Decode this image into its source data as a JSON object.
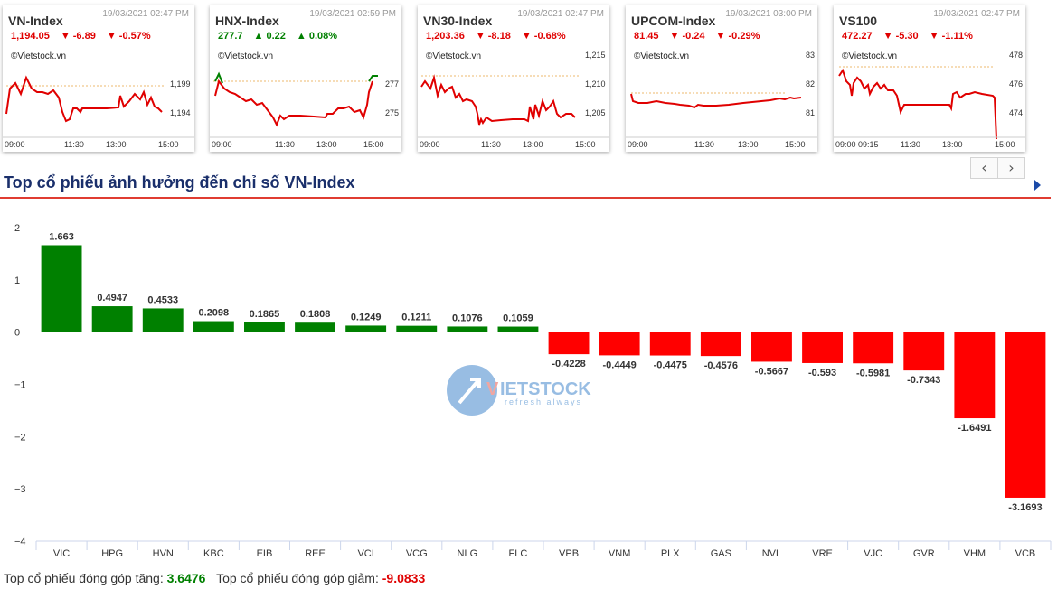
{
  "index_cards": [
    {
      "name": "VN-Index",
      "datetime": "19/03/2021 02:47 PM",
      "value": "1,194.05",
      "change": "▼  -6.89",
      "percent": "▼  -0.57%",
      "direction": "down",
      "brand": "©Vietstock.vn",
      "y_ticks": [
        "1,199",
        "1,194"
      ],
      "x_ticks": [
        "09:00",
        "11:30",
        "13:00",
        "15:00"
      ]
    },
    {
      "name": "HNX-Index",
      "datetime": "19/03/2021 02:59 PM",
      "value": "277.7",
      "change": "▲  0.22",
      "percent": "▲  0.08%",
      "direction": "up",
      "brand": "©Vietstock.vn",
      "y_ticks": [
        "277",
        "275"
      ],
      "x_ticks": [
        "09:00",
        "11:30",
        "13:00",
        "15:00"
      ]
    },
    {
      "name": "VN30-Index",
      "datetime": "19/03/2021 02:47 PM",
      "value": "1,203.36",
      "change": "▼  -8.18",
      "percent": "▼  -0.68%",
      "direction": "down",
      "brand": "©Vietstock.vn",
      "y_ticks": [
        "1,215",
        "1,210",
        "1,205"
      ],
      "x_ticks": [
        "09:00",
        "11:30",
        "13:00",
        "15:00"
      ]
    },
    {
      "name": "UPCOM-Index",
      "datetime": "19/03/2021 03:00 PM",
      "value": "81.45",
      "change": "▼  -0.24",
      "percent": "▼  -0.29%",
      "direction": "down",
      "brand": "©Vietstock.vn",
      "y_ticks": [
        "83",
        "82",
        "81"
      ],
      "x_ticks": [
        "09:00",
        "11:30",
        "13:00",
        "15:00"
      ]
    },
    {
      "name": "VS100",
      "datetime": "19/03/2021 02:47 PM",
      "value": "472.27",
      "change": "▼  -5.30",
      "percent": "▼  -1.11%",
      "direction": "down",
      "brand": "©Vietstock.vn",
      "y_ticks": [
        "478",
        "476",
        "474"
      ],
      "x_ticks": [
        "09:00 09:15",
        "11:30",
        "13:00",
        "15:00"
      ]
    }
  ],
  "pager": {
    "prev": "‹",
    "next": "›"
  },
  "section": {
    "title": "Top cổ phiếu ảnh hưởng đến chỉ số VN-Index"
  },
  "watermark": {
    "brand_v": "V",
    "brand_rest": "IETSTOCK",
    "tagline": "refresh always"
  },
  "chart_data": {
    "type": "bar",
    "title": "Top cổ phiếu ảnh hưởng đến chỉ số VN-Index",
    "categories": [
      "VIC",
      "HPG",
      "HVN",
      "KBC",
      "EIB",
      "REE",
      "VCI",
      "VCG",
      "NLG",
      "FLC",
      "VPB",
      "VNM",
      "PLX",
      "GAS",
      "NVL",
      "VRE",
      "VJC",
      "GVR",
      "VHM",
      "VCB"
    ],
    "values": [
      1.663,
      0.4947,
      0.4533,
      0.2098,
      0.1865,
      0.1808,
      0.1249,
      0.1211,
      0.1076,
      0.1059,
      -0.4228,
      -0.4449,
      -0.4475,
      -0.4576,
      -0.5667,
      -0.593,
      -0.5981,
      -0.7343,
      -1.6491,
      -3.1693
    ],
    "value_labels": [
      "1.663",
      "0.4947",
      "0.4533",
      "0.2098",
      "0.1865",
      "0.1808",
      "0.1249",
      "0.1211",
      "0.1076",
      "0.1059",
      "-0.4228",
      "-0.4449",
      "-0.4475",
      "-0.4576",
      "-0.5667",
      "-0.593",
      "-0.5981",
      "-0.7343",
      "-1.6491",
      "-3.1693"
    ],
    "ylim": [
      -4,
      2
    ],
    "y_ticks": [
      "2",
      "1",
      "0",
      "−1",
      "−2",
      "−3",
      "−4"
    ],
    "positive_color": "#008000",
    "negative_color": "#ff0000"
  },
  "summary": {
    "up_label": "Top cổ phiếu đóng góp tăng:",
    "up_value": "3.6476",
    "down_label": "Top cổ phiếu đóng góp giảm:",
    "down_value": "-9.0833"
  }
}
